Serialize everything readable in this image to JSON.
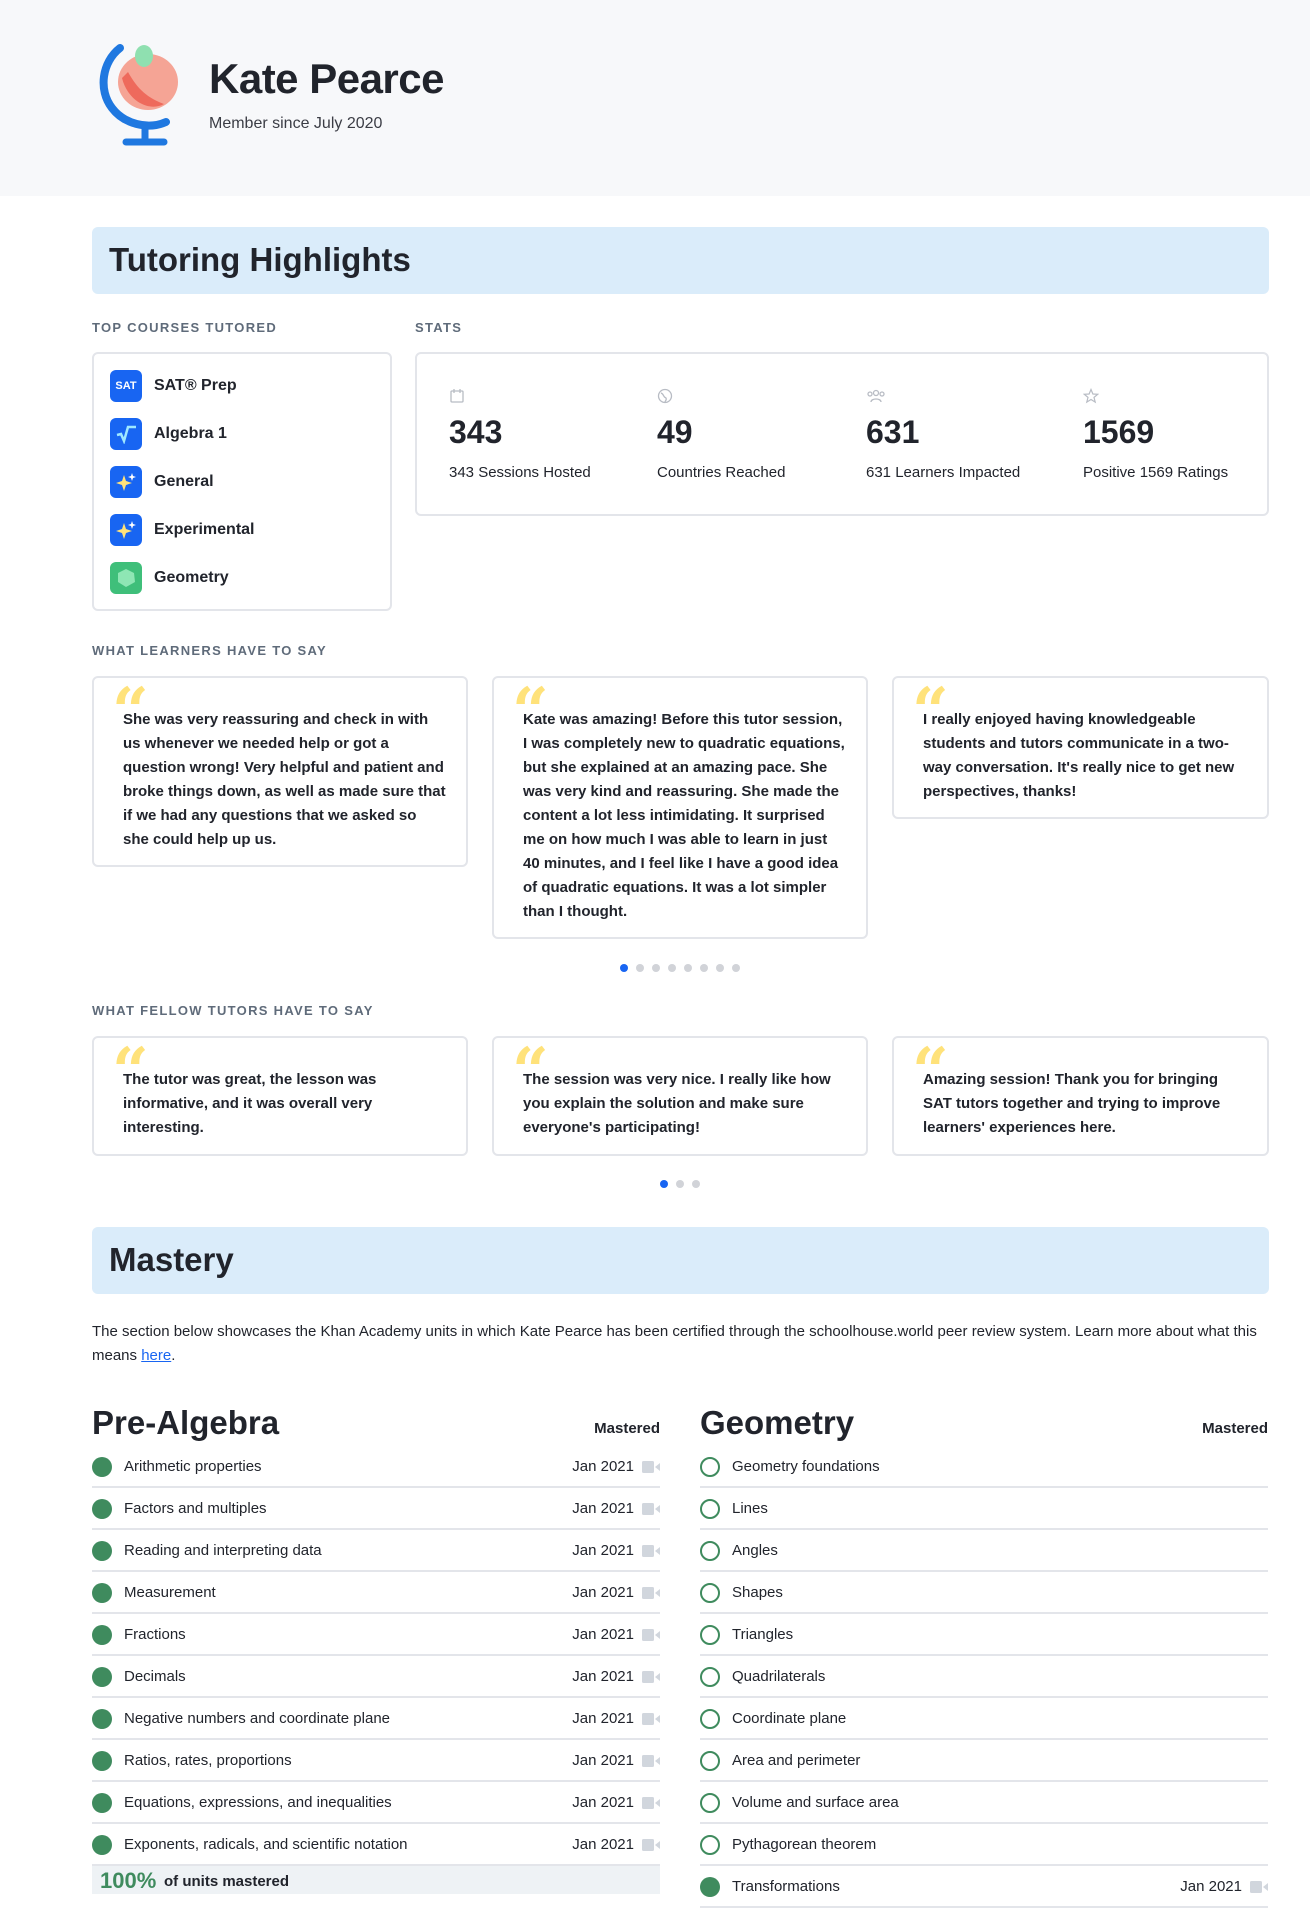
{
  "profile": {
    "name": "Kate Pearce",
    "member_since": "Member since July 2020"
  },
  "highlights": {
    "title": "Tutoring Highlights",
    "top_courses_label": "TOP COURSES TUTORED",
    "stats_label": "STATS",
    "courses": [
      {
        "label": "SAT® Prep",
        "icon": "sat-icon",
        "icon_text": "SAT",
        "color": "#1865f2"
      },
      {
        "label": "Algebra 1",
        "icon": "sqrt-icon",
        "color": "#1865f2"
      },
      {
        "label": "General",
        "icon": "sparkle-icon",
        "color": "#1865f2"
      },
      {
        "label": "Experimental",
        "icon": "sparkle-icon",
        "color": "#1865f2"
      },
      {
        "label": "Geometry",
        "icon": "geometry-icon",
        "color": "#3fbf7a"
      }
    ],
    "stats": [
      {
        "value": "343",
        "caption": "343 Sessions Hosted",
        "icon": "calendar-icon"
      },
      {
        "value": "49",
        "caption": "Countries Reached",
        "icon": "globe-icon"
      },
      {
        "value": "631",
        "caption": "631 Learners Impacted",
        "icon": "people-icon"
      },
      {
        "value": "1569",
        "caption": "Positive 1569 Ratings",
        "icon": "star-icon"
      }
    ]
  },
  "learners": {
    "label": "WHAT LEARNERS HAVE TO SAY",
    "quotes": [
      "She was very reassuring and check in with us whenever we needed help or got a question wrong! Very helpful and patient and broke things down, as well as made sure that if we had any questions that we asked so she could help up us.",
      "Kate was amazing! Before this tutor session, I was completely new to quadratic equations, but she explained at an amazing pace. She was very kind and reassuring. She made the content a lot less intimidating. It surprised me on how much I was able to learn in just 40 minutes, and I feel like I have a good idea of quadratic equations. It was a lot simpler than I thought.",
      "I really enjoyed having knowledgeable students and tutors communicate in a two-way conversation. It's really nice to get new perspectives, thanks!"
    ],
    "page_count": 8,
    "active_page": 1
  },
  "tutors": {
    "label": "WHAT FELLOW TUTORS HAVE TO SAY",
    "quotes": [
      "The tutor was great, the lesson was informative, and it was overall very interesting.",
      "The session was very nice. I really like how you explain the solution and make sure everyone's participating!",
      "Amazing session! Thank you for bringing SAT tutors together and trying to improve learners' experiences here."
    ],
    "page_count": 3,
    "active_page": 1
  },
  "mastery": {
    "title": "Mastery",
    "intro": "The section below showcases the Khan Academy units in which Kate Pearce has been certified through the schoolhouse.world peer review system. Learn more about what this means ",
    "link_text": "here",
    "intro_end": ".",
    "subjects": [
      {
        "title": "Pre-Algebra",
        "status": "Mastered",
        "units": [
          {
            "name": "Arithmetic properties",
            "date": "Jan 2021",
            "mastered": true
          },
          {
            "name": "Factors and multiples",
            "date": "Jan 2021",
            "mastered": true
          },
          {
            "name": "Reading and interpreting data",
            "date": "Jan 2021",
            "mastered": true
          },
          {
            "name": "Measurement",
            "date": "Jan 2021",
            "mastered": true
          },
          {
            "name": "Fractions",
            "date": "Jan 2021",
            "mastered": true
          },
          {
            "name": "Decimals",
            "date": "Jan 2021",
            "mastered": true
          },
          {
            "name": "Negative numbers and coordinate plane",
            "date": "Jan 2021",
            "mastered": true
          },
          {
            "name": "Ratios, rates, proportions",
            "date": "Jan 2021",
            "mastered": true
          },
          {
            "name": "Equations, expressions, and inequalities",
            "date": "Jan 2021",
            "mastered": true
          },
          {
            "name": "Exponents, radicals, and scientific notation",
            "date": "Jan 2021",
            "mastered": true
          }
        ],
        "progress": {
          "percent_label": "100%",
          "fraction": 1.0,
          "text": "of units mastered"
        }
      },
      {
        "title": "Geometry",
        "status": "Mastered",
        "units": [
          {
            "name": "Geometry foundations",
            "date": "",
            "mastered": false
          },
          {
            "name": "Lines",
            "date": "",
            "mastered": false
          },
          {
            "name": "Angles",
            "date": "",
            "mastered": false
          },
          {
            "name": "Shapes",
            "date": "",
            "mastered": false
          },
          {
            "name": "Triangles",
            "date": "",
            "mastered": false
          },
          {
            "name": "Quadrilaterals",
            "date": "",
            "mastered": false
          },
          {
            "name": "Coordinate plane",
            "date": "",
            "mastered": false
          },
          {
            "name": "Area and perimeter",
            "date": "",
            "mastered": false
          },
          {
            "name": "Volume and surface area",
            "date": "",
            "mastered": false
          },
          {
            "name": "Pythagorean theorem",
            "date": "",
            "mastered": false
          },
          {
            "name": "Transformations",
            "date": "Jan 2021",
            "mastered": true
          }
        ]
      }
    ]
  },
  "colors": {
    "accent": "#1865f2",
    "banner": "#daecfa",
    "mastered_green": "#3f8b5e",
    "quote_yellow": "#ffe27a"
  }
}
